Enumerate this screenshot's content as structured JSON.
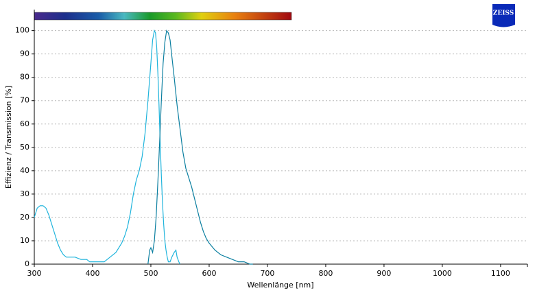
{
  "logo": "ZEISS",
  "chart_data": {
    "type": "line",
    "x_label": "Wellenlänge [nm]",
    "y_label": "Effizienz / Transmission [%]",
    "xlim": [
      300,
      1146
    ],
    "ylim": [
      0,
      109
    ],
    "xticks": [
      300,
      400,
      500,
      600,
      700,
      800,
      900,
      1000,
      1100
    ],
    "yticks": [
      0,
      10,
      20,
      30,
      40,
      50,
      60,
      70,
      80,
      90,
      100
    ],
    "grid": true,
    "series": [
      {
        "color": "#1fb4dc",
        "x": [
          300,
          305,
          310,
          315,
          320,
          325,
          330,
          335,
          340,
          345,
          350,
          355,
          360,
          370,
          380,
          390,
          395,
          400,
          410,
          420,
          425,
          430,
          440,
          450,
          455,
          460,
          465,
          470,
          475,
          480,
          485,
          490,
          495,
          500,
          503,
          506,
          508,
          510,
          512,
          514,
          516,
          518,
          520,
          522,
          524,
          526,
          528,
          530,
          533,
          536,
          540,
          543,
          545,
          548,
          550
        ],
        "values": [
          20,
          24,
          25,
          25,
          24,
          21,
          17,
          13,
          9,
          6,
          4,
          3,
          3,
          3,
          2,
          2,
          1,
          1,
          1,
          1,
          2,
          3,
          5,
          9,
          12,
          16,
          22,
          30,
          36,
          40,
          46,
          56,
          70,
          86,
          96,
          100,
          99,
          93,
          82,
          68,
          52,
          38,
          26,
          17,
          10,
          6,
          3,
          1,
          1,
          3,
          5,
          6,
          3,
          1,
          0
        ]
      },
      {
        "color": "#0b7fa0",
        "x": [
          495,
          498,
          500,
          503,
          506,
          509,
          512,
          515,
          518,
          521,
          524,
          527,
          530,
          533,
          536,
          540,
          545,
          550,
          555,
          560,
          565,
          570,
          575,
          580,
          585,
          590,
          595,
          600,
          610,
          620,
          630,
          640,
          650,
          660,
          670,
          675
        ],
        "values": [
          0,
          6,
          7,
          5,
          10,
          20,
          35,
          52,
          70,
          86,
          95,
          100,
          99,
          96,
          89,
          80,
          68,
          58,
          48,
          41,
          37,
          33,
          28,
          23,
          18,
          14,
          11,
          9,
          6,
          4,
          3,
          2,
          1,
          1,
          0,
          0
        ]
      }
    ]
  }
}
